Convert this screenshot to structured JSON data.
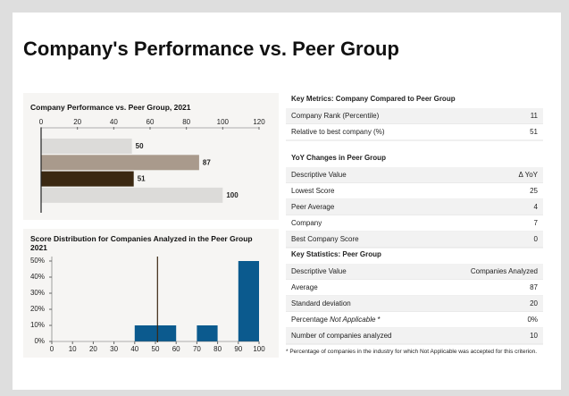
{
  "title": "Company's Performance vs. Peer Group",
  "chart_data": [
    {
      "type": "bar",
      "title": "Company Performance vs. Peer Group, 2021",
      "categories": [
        null,
        null,
        null,
        null
      ],
      "values": [
        50,
        87,
        51,
        100
      ],
      "colors": [
        "#dcdbd9",
        "#a99a8c",
        "#3b2812",
        "#dcdbd9"
      ],
      "label_colors": [
        "#bdbcba",
        "#a99a8c",
        "#3b2812",
        "#bdbcba"
      ],
      "xlim": [
        0,
        120
      ],
      "xticks": [
        0,
        20,
        40,
        60,
        80,
        100,
        120
      ]
    },
    {
      "type": "histogram",
      "title": "Score Distribution for Companies Analyzed in the Peer Group 2021",
      "bins": [
        0,
        10,
        20,
        30,
        40,
        50,
        60,
        70,
        80,
        90,
        100
      ],
      "values": [
        0,
        0,
        0,
        0,
        10,
        10,
        0,
        10,
        0,
        50
      ],
      "color": "#0b5a8e",
      "marker_x": 51,
      "marker_color": "#3b2812",
      "xlim": [
        0,
        100
      ],
      "xticks": [
        0,
        10,
        20,
        30,
        40,
        50,
        60,
        70,
        80,
        90,
        100
      ],
      "ylim": [
        0,
        50
      ],
      "yticks": [
        {
          "value": 0,
          "label": "0%"
        },
        {
          "value": 10,
          "label": "10%"
        },
        {
          "value": 20,
          "label": "20%"
        },
        {
          "value": 30,
          "label": "30%"
        },
        {
          "value": 40,
          "label": "40%"
        },
        {
          "value": 50,
          "label": "50%"
        }
      ]
    }
  ],
  "tables": [
    {
      "title": "Key Metrics: Company Compared to Peer Group",
      "rows": [
        [
          "Company Rank (Percentile)",
          11
        ],
        [
          "Relative to best company (%)",
          51
        ]
      ]
    },
    {
      "title": "YoY Changes in Peer Group",
      "rows": [
        [
          "Descriptive Value",
          "Δ YoY"
        ],
        [
          "Lowest Score",
          25
        ],
        [
          "Peer Average",
          4
        ],
        [
          "Company",
          7
        ],
        [
          "Best Company Score",
          0
        ]
      ]
    },
    {
      "title": "Key Statistics: Peer Group",
      "rows": [
        [
          "Descriptive Value",
          "Companies Analyzed"
        ],
        [
          "Average",
          87
        ],
        [
          "Standard deviation",
          20
        ],
        [
          [
            "Percentage ",
            "Not Applicable",
            " *"
          ],
          "0%"
        ],
        [
          "Number of companies analyzed",
          10
        ]
      ]
    }
  ],
  "footnote": "* Percentage of companies in the industry for which Not Applicable was accepted for this criterion."
}
